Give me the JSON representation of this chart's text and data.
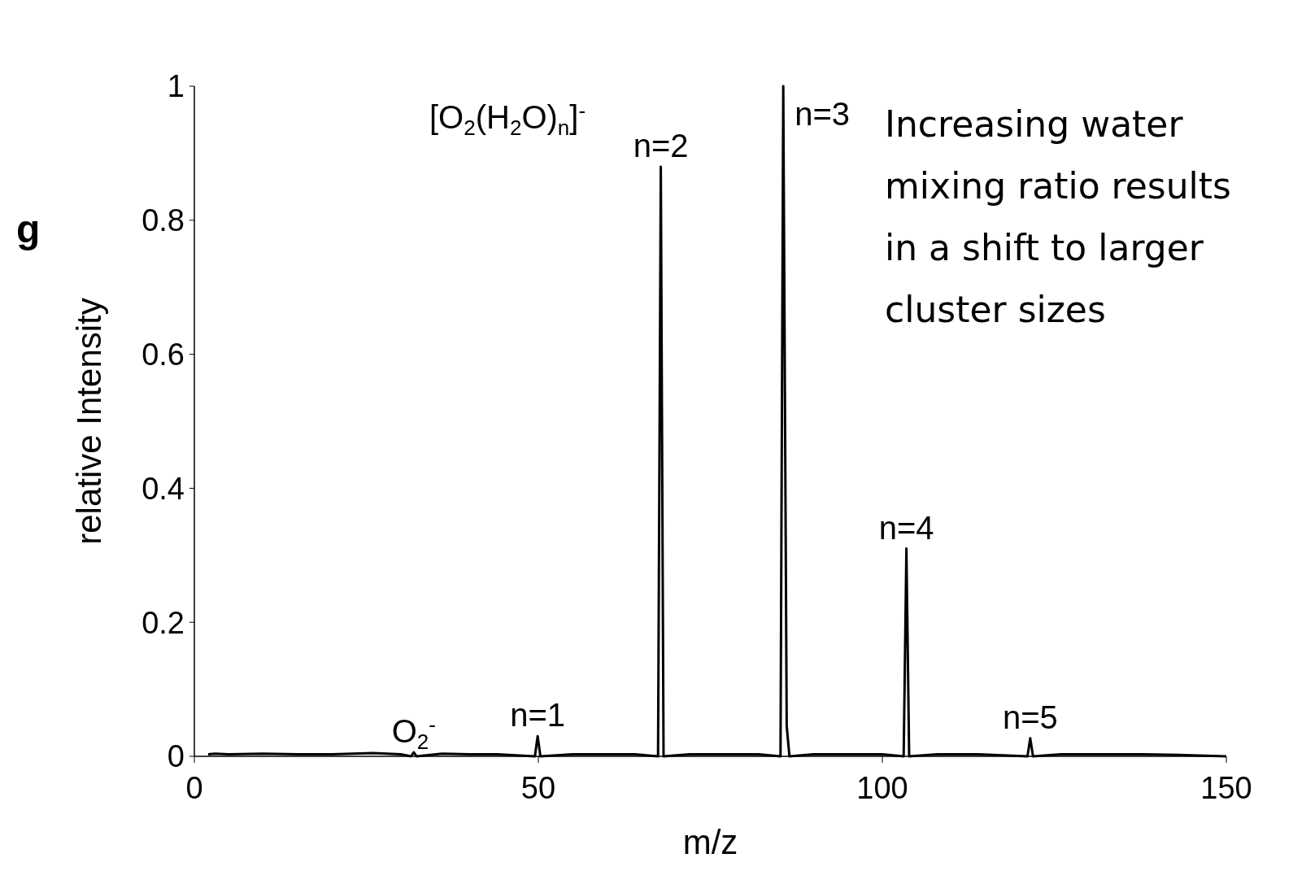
{
  "chart_data": {
    "type": "line",
    "xlabel": "m/z",
    "ylabel": "relative Intensity",
    "xlim": [
      0,
      150
    ],
    "xticks": [
      0,
      50,
      100,
      150
    ],
    "ylim": [
      0,
      1
    ],
    "yticks": [
      0,
      0.2,
      0.4,
      0.6,
      0.8,
      1
    ],
    "grid": false,
    "marker": "none",
    "line_style": "solid",
    "series": [
      {
        "color": "#000000",
        "x": [
          2,
          3,
          5,
          10,
          15,
          20,
          26,
          30,
          31.5,
          31.9,
          32.3,
          36,
          40,
          44,
          49.5,
          49.9,
          50.3,
          55,
          60,
          64,
          67.4,
          67.8,
          68.2,
          72,
          78,
          82,
          85.2,
          85.6,
          86.1,
          86.5,
          90,
          95,
          100,
          103.1,
          103.5,
          103.9,
          108,
          114,
          121.1,
          121.5,
          121.9,
          126,
          132,
          138,
          143,
          150
        ],
        "values": [
          0.003,
          0.004,
          0.003,
          0.004,
          0.003,
          0.003,
          0.005,
          0.003,
          0,
          0.006,
          0,
          0.004,
          0.003,
          0.003,
          0,
          0.03,
          0,
          0.003,
          0.003,
          0.003,
          0,
          0.88,
          0,
          0.003,
          0.003,
          0.003,
          0,
          1,
          0.045,
          0,
          0.003,
          0.003,
          0.003,
          0,
          0.31,
          0,
          0.003,
          0.003,
          0,
          0.027,
          0,
          0.003,
          0.003,
          0.003,
          0.002,
          0
        ]
      }
    ],
    "annotations": [
      "g",
      "Increasing water mixing ratio results in a shift to larger cluster sizes",
      "[O$_{2}$(H$_{2}$O)$_{n}$]$^{-}$",
      {
        "text": "O$_{2}$$^{-}$",
        "x": 31.9,
        "y": 0.006
      },
      {
        "text": "n=1",
        "x": 49.9,
        "y": 0.03
      },
      {
        "text": "n=2",
        "x": 67.8,
        "y": 0.88
      },
      {
        "text": "n=3",
        "x": 85.6,
        "y": 1
      },
      {
        "text": "n=4",
        "x": 103.5,
        "y": 0.31
      },
      {
        "text": "n=5",
        "x": 121.5,
        "y": 0.027
      }
    ]
  }
}
